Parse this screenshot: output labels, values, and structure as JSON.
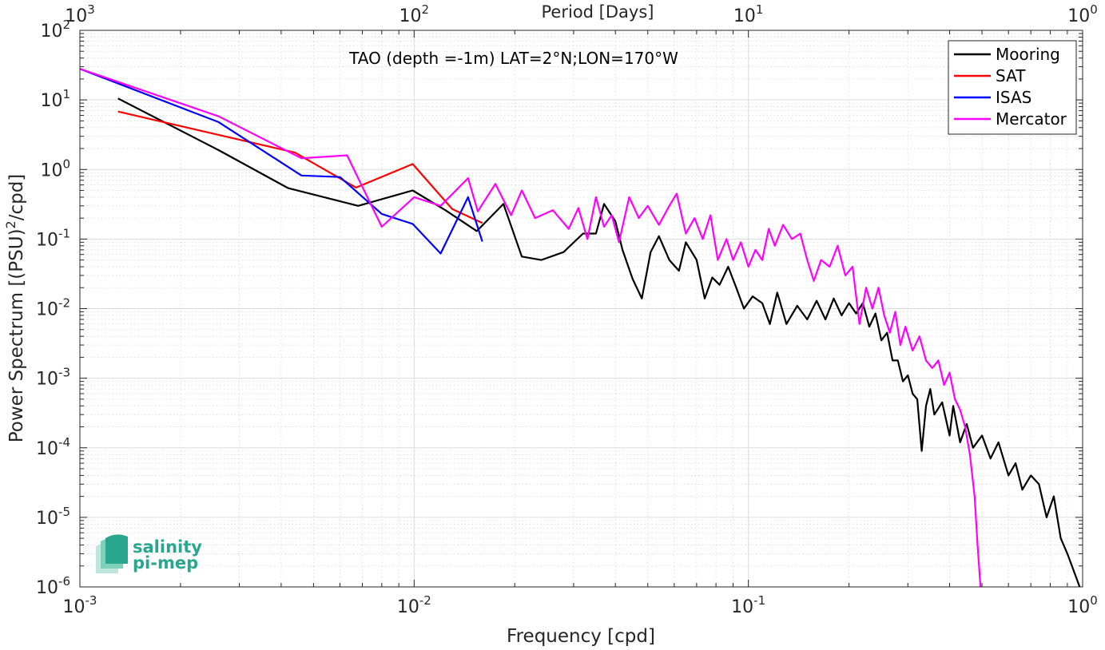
{
  "chart_data": {
    "type": "line",
    "title": "TAO (depth =-1m) LAT=2°N;LON=170°W",
    "xlabel": "Frequency [cpd]",
    "ylabel": "Power Spectrum [(PSU)²/cpd]",
    "ylabel_parts": {
      "before": "Power Spectrum [(PSU)",
      "sup": "2",
      "after": "/cpd]"
    },
    "top_xlabel": "Period [Days]",
    "x_scale": "log",
    "y_scale": "log",
    "xlim": [
      0.001,
      1
    ],
    "ylim": [
      1e-06,
      100
    ],
    "x_ticks": [
      {
        "base": "10",
        "exp": "-3",
        "value": 0.001
      },
      {
        "base": "10",
        "exp": "-2",
        "value": 0.01
      },
      {
        "base": "10",
        "exp": "-1",
        "value": 0.1
      },
      {
        "base": "10",
        "exp": "0",
        "value": 1
      }
    ],
    "top_ticks": [
      {
        "base": "10",
        "exp": "3",
        "value": 0.001
      },
      {
        "base": "10",
        "exp": "2",
        "value": 0.01
      },
      {
        "base": "10",
        "exp": "1",
        "value": 0.1
      },
      {
        "base": "10",
        "exp": "0",
        "value": 1
      }
    ],
    "y_ticks": [
      {
        "base": "10",
        "exp": "2",
        "value": 100
      },
      {
        "base": "10",
        "exp": "1",
        "value": 10
      },
      {
        "base": "10",
        "exp": "0",
        "value": 1
      },
      {
        "base": "10",
        "exp": "-1",
        "value": 0.1
      },
      {
        "base": "10",
        "exp": "-2",
        "value": 0.01
      },
      {
        "base": "10",
        "exp": "-3",
        "value": 0.001
      },
      {
        "base": "10",
        "exp": "-4",
        "value": 0.0001
      },
      {
        "base": "10",
        "exp": "-5",
        "value": 1e-05
      },
      {
        "base": "10",
        "exp": "-6",
        "value": 1e-06
      }
    ],
    "grid": true,
    "legend_position": "top-right",
    "series": [
      {
        "name": "Mooring",
        "color": "#000000",
        "points": [
          [
            0.0013,
            10.5
          ],
          [
            0.0026,
            1.9
          ],
          [
            0.0042,
            0.54
          ],
          [
            0.0068,
            0.3
          ],
          [
            0.0099,
            0.5
          ],
          [
            0.0124,
            0.26
          ],
          [
            0.0154,
            0.13
          ],
          [
            0.0185,
            0.32
          ],
          [
            0.021,
            0.056
          ],
          [
            0.024,
            0.05
          ],
          [
            0.028,
            0.065
          ],
          [
            0.032,
            0.12
          ],
          [
            0.035,
            0.12
          ],
          [
            0.037,
            0.32
          ],
          [
            0.04,
            0.18
          ],
          [
            0.042,
            0.07
          ],
          [
            0.045,
            0.027
          ],
          [
            0.048,
            0.014
          ],
          [
            0.051,
            0.065
          ],
          [
            0.054,
            0.11
          ],
          [
            0.058,
            0.05
          ],
          [
            0.062,
            0.035
          ],
          [
            0.065,
            0.09
          ],
          [
            0.07,
            0.05
          ],
          [
            0.074,
            0.014
          ],
          [
            0.078,
            0.028
          ],
          [
            0.082,
            0.022
          ],
          [
            0.087,
            0.04
          ],
          [
            0.092,
            0.02
          ],
          [
            0.097,
            0.01
          ],
          [
            0.103,
            0.015
          ],
          [
            0.11,
            0.012
          ],
          [
            0.116,
            0.006
          ],
          [
            0.122,
            0.017
          ],
          [
            0.13,
            0.006
          ],
          [
            0.14,
            0.011
          ],
          [
            0.15,
            0.007
          ],
          [
            0.16,
            0.013
          ],
          [
            0.17,
            0.007
          ],
          [
            0.18,
            0.014
          ],
          [
            0.19,
            0.008
          ],
          [
            0.2,
            0.012
          ],
          [
            0.21,
            0.0085
          ],
          [
            0.22,
            0.012
          ],
          [
            0.23,
            0.0055
          ],
          [
            0.24,
            0.0085
          ],
          [
            0.25,
            0.0035
          ],
          [
            0.26,
            0.0045
          ],
          [
            0.27,
            0.0018
          ],
          [
            0.28,
            0.0018
          ],
          [
            0.29,
            0.0009
          ],
          [
            0.3,
            0.0011
          ],
          [
            0.31,
            0.0006
          ],
          [
            0.32,
            0.0005
          ],
          [
            0.33,
            9e-05
          ],
          [
            0.34,
            0.0004
          ],
          [
            0.35,
            0.0007
          ],
          [
            0.36,
            0.0003
          ],
          [
            0.38,
            0.00045
          ],
          [
            0.4,
            0.00015
          ],
          [
            0.41,
            0.0004
          ],
          [
            0.43,
            0.00012
          ],
          [
            0.45,
            0.00022
          ],
          [
            0.47,
            0.0001
          ],
          [
            0.5,
            0.00015
          ],
          [
            0.53,
            7e-05
          ],
          [
            0.56,
            0.00012
          ],
          [
            0.6,
            4e-05
          ],
          [
            0.63,
            6e-05
          ],
          [
            0.66,
            2.5e-05
          ],
          [
            0.7,
            4e-05
          ],
          [
            0.74,
            3e-05
          ],
          [
            0.78,
            1e-05
          ],
          [
            0.82,
            2e-05
          ],
          [
            0.86,
            5e-06
          ],
          [
            0.9,
            3e-06
          ],
          [
            0.95,
            1.5e-06
          ],
          [
            0.98,
            1e-06
          ]
        ]
      },
      {
        "name": "SAT",
        "color": "#ff0000",
        "points": [
          [
            0.0013,
            6.8
          ],
          [
            0.0044,
            1.75
          ],
          [
            0.0067,
            0.55
          ],
          [
            0.0099,
            1.2
          ],
          [
            0.013,
            0.27
          ],
          [
            0.016,
            0.17
          ]
        ]
      },
      {
        "name": "ISAS",
        "color": "#0000ff",
        "points": [
          [
            0.001,
            28
          ],
          [
            0.0026,
            4.8
          ],
          [
            0.0046,
            0.82
          ],
          [
            0.006,
            0.78
          ],
          [
            0.008,
            0.23
          ],
          [
            0.0099,
            0.165
          ],
          [
            0.012,
            0.062
          ],
          [
            0.0145,
            0.4
          ],
          [
            0.016,
            0.092
          ]
        ]
      },
      {
        "name": "Mercator",
        "color": "#ff00ff",
        "points": [
          [
            0.001,
            28
          ],
          [
            0.0026,
            5.8
          ],
          [
            0.0046,
            1.45
          ],
          [
            0.0063,
            1.6
          ],
          [
            0.008,
            0.15
          ],
          [
            0.01,
            0.4
          ],
          [
            0.012,
            0.3
          ],
          [
            0.0145,
            0.75
          ],
          [
            0.0155,
            0.25
          ],
          [
            0.0175,
            0.62
          ],
          [
            0.0195,
            0.22
          ],
          [
            0.021,
            0.5
          ],
          [
            0.023,
            0.2
          ],
          [
            0.026,
            0.26
          ],
          [
            0.029,
            0.14
          ],
          [
            0.031,
            0.28
          ],
          [
            0.033,
            0.1
          ],
          [
            0.035,
            0.4
          ],
          [
            0.037,
            0.15
          ],
          [
            0.039,
            0.22
          ],
          [
            0.041,
            0.09
          ],
          [
            0.044,
            0.4
          ],
          [
            0.047,
            0.2
          ],
          [
            0.05,
            0.3
          ],
          [
            0.054,
            0.16
          ],
          [
            0.058,
            0.3
          ],
          [
            0.061,
            0.45
          ],
          [
            0.065,
            0.12
          ],
          [
            0.069,
            0.2
          ],
          [
            0.073,
            0.1
          ],
          [
            0.077,
            0.22
          ],
          [
            0.081,
            0.05
          ],
          [
            0.086,
            0.1
          ],
          [
            0.09,
            0.05
          ],
          [
            0.095,
            0.09
          ],
          [
            0.1,
            0.04
          ],
          [
            0.105,
            0.07
          ],
          [
            0.11,
            0.05
          ],
          [
            0.115,
            0.14
          ],
          [
            0.12,
            0.08
          ],
          [
            0.127,
            0.16
          ],
          [
            0.135,
            0.1
          ],
          [
            0.143,
            0.12
          ],
          [
            0.15,
            0.05
          ],
          [
            0.157,
            0.025
          ],
          [
            0.165,
            0.05
          ],
          [
            0.175,
            0.04
          ],
          [
            0.185,
            0.08
          ],
          [
            0.195,
            0.03
          ],
          [
            0.205,
            0.04
          ],
          [
            0.215,
            0.006
          ],
          [
            0.225,
            0.02
          ],
          [
            0.235,
            0.01
          ],
          [
            0.245,
            0.02
          ],
          [
            0.255,
            0.008
          ],
          [
            0.265,
            0.0045
          ],
          [
            0.275,
            0.009
          ],
          [
            0.285,
            0.003
          ],
          [
            0.295,
            0.0055
          ],
          [
            0.31,
            0.0025
          ],
          [
            0.325,
            0.004
          ],
          [
            0.34,
            0.0018
          ],
          [
            0.355,
            0.0014
          ],
          [
            0.37,
            0.0018
          ],
          [
            0.385,
            0.0008
          ],
          [
            0.4,
            0.0012
          ],
          [
            0.415,
            0.0005
          ],
          [
            0.43,
            0.00035
          ],
          [
            0.445,
            0.0002
          ],
          [
            0.46,
            8e-05
          ],
          [
            0.475,
            2e-05
          ],
          [
            0.485,
            4e-06
          ],
          [
            0.495,
            1e-06
          ]
        ]
      }
    ]
  },
  "logo": {
    "line1": "salinity",
    "line2": "pi-mep"
  }
}
